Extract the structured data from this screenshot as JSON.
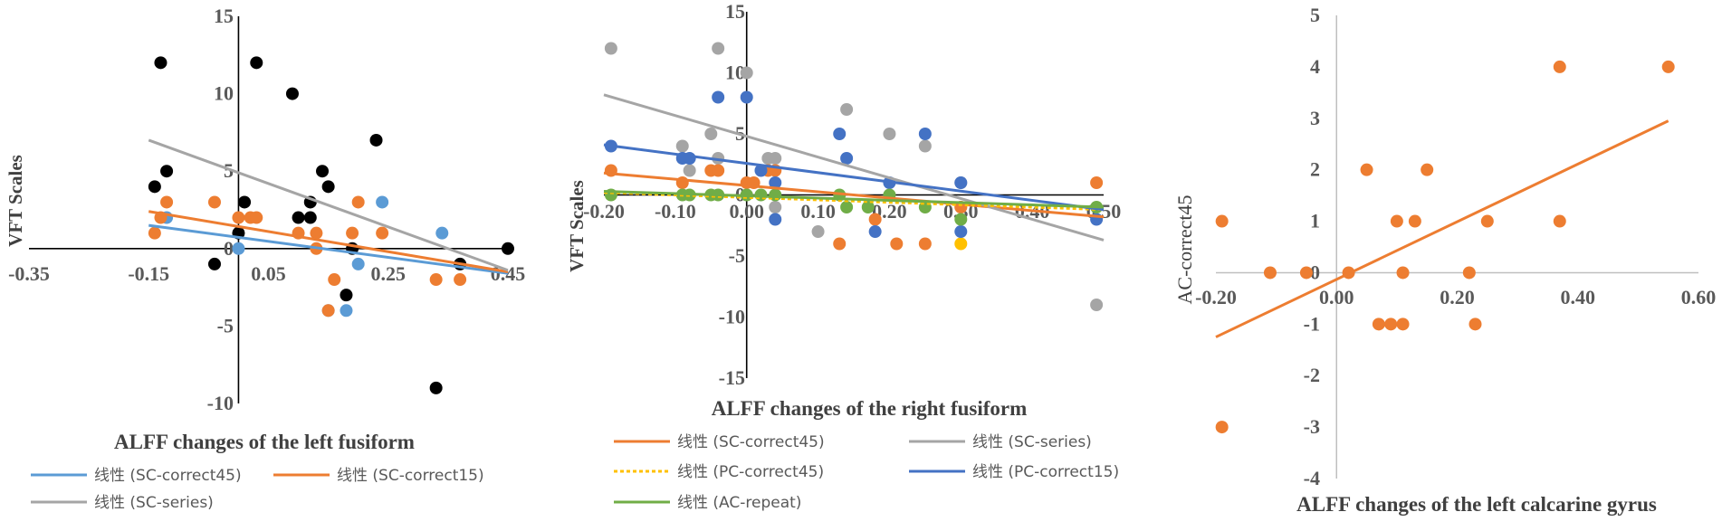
{
  "chart_data": [
    {
      "type": "scatter",
      "xlabel": "ALFF changes of the left fusiform",
      "ylabel": "VFT  Scales",
      "xlim": [
        -0.35,
        0.45
      ],
      "ylim": [
        -10,
        15
      ],
      "x_ticks": [
        "-0.35",
        "-0.15",
        "0.05",
        "0.25",
        "0.45"
      ],
      "y_ticks": [
        "15",
        "10",
        "5",
        "0",
        "-5",
        "-10"
      ],
      "series": [
        {
          "color": "#5B9BD5",
          "points": [
            [
              -0.12,
              2
            ],
            [
              0.0,
              0
            ],
            [
              0.15,
              -4
            ],
            [
              0.18,
              -4
            ],
            [
              0.2,
              -1
            ],
            [
              0.24,
              3
            ],
            [
              0.34,
              1
            ]
          ]
        },
        {
          "color": "#ED7D31",
          "points": [
            [
              -0.14,
              1
            ],
            [
              -0.13,
              2
            ],
            [
              -0.12,
              3
            ],
            [
              -0.04,
              3
            ],
            [
              0.0,
              2
            ],
            [
              0.02,
              2
            ],
            [
              0.03,
              2
            ],
            [
              0.1,
              1
            ],
            [
              0.13,
              1
            ],
            [
              0.13,
              0
            ],
            [
              0.15,
              -4
            ],
            [
              0.16,
              -2
            ],
            [
              0.19,
              1
            ],
            [
              0.2,
              3
            ],
            [
              0.24,
              1
            ],
            [
              0.33,
              -2
            ],
            [
              0.37,
              -2
            ]
          ]
        },
        {
          "color": "#000000",
          "points": [
            [
              -0.14,
              4
            ],
            [
              -0.13,
              12
            ],
            [
              -0.12,
              5
            ],
            [
              -0.04,
              -1
            ],
            [
              0.0,
              1
            ],
            [
              0.01,
              3
            ],
            [
              0.03,
              12
            ],
            [
              0.09,
              10
            ],
            [
              0.1,
              2
            ],
            [
              0.12,
              2
            ],
            [
              0.12,
              3
            ],
            [
              0.14,
              5
            ],
            [
              0.15,
              4
            ],
            [
              0.18,
              -3
            ],
            [
              0.19,
              0
            ],
            [
              0.23,
              7
            ],
            [
              0.33,
              -9
            ],
            [
              0.37,
              -1
            ],
            [
              0.45,
              0
            ]
          ]
        }
      ],
      "trendlines": [
        {
          "color": "#5B9BD5",
          "dash": false,
          "from": [
            -0.15,
            1.5
          ],
          "to": [
            0.45,
            -1.6
          ]
        },
        {
          "color": "#ED7D31",
          "dash": false,
          "from": [
            -0.15,
            2.4
          ],
          "to": [
            0.45,
            -1.5
          ]
        },
        {
          "color": "#A5A5A5",
          "dash": false,
          "from": [
            -0.15,
            7.0
          ],
          "to": [
            0.45,
            -1.4
          ]
        }
      ],
      "legend": [
        {
          "label": "线性 (SC-correct45)",
          "color": "#5B9BD5",
          "dash": false
        },
        {
          "label": "线性 (SC-correct15)",
          "color": "#ED7D31",
          "dash": false
        },
        {
          "label": "线性 (SC-series)",
          "color": "#A5A5A5",
          "dash": false
        }
      ]
    },
    {
      "type": "scatter",
      "xlabel": "ALFF changes of the right fusiform",
      "ylabel": "VFT Scales",
      "xlim": [
        -0.2,
        0.5
      ],
      "ylim": [
        -15,
        15
      ],
      "x_ticks": [
        "-0.20",
        "-0.10",
        "0.00",
        "0.10",
        "0.20",
        "0.30",
        "0.40",
        "0.50"
      ],
      "y_ticks": [
        "15",
        "10",
        "5",
        "0",
        "-5",
        "-10",
        "-15"
      ],
      "series": [
        {
          "color": "#A5A5A5",
          "points": [
            [
              -0.19,
              12
            ],
            [
              -0.09,
              4
            ],
            [
              -0.08,
              2
            ],
            [
              -0.05,
              5
            ],
            [
              -0.04,
              12
            ],
            [
              -0.04,
              3
            ],
            [
              0.0,
              10
            ],
            [
              0.03,
              3
            ],
            [
              0.04,
              3
            ],
            [
              0.04,
              -1
            ],
            [
              0.1,
              -3
            ],
            [
              0.14,
              7
            ],
            [
              0.2,
              5
            ],
            [
              0.25,
              4
            ],
            [
              0.3,
              1
            ],
            [
              0.3,
              -1
            ],
            [
              0.49,
              -9
            ]
          ]
        },
        {
          "color": "#ED7D31",
          "points": [
            [
              -0.19,
              2
            ],
            [
              -0.09,
              1
            ],
            [
              -0.05,
              2
            ],
            [
              -0.04,
              2
            ],
            [
              0.0,
              1
            ],
            [
              0.01,
              1
            ],
            [
              0.03,
              2
            ],
            [
              0.04,
              2
            ],
            [
              0.13,
              -4
            ],
            [
              0.18,
              -2
            ],
            [
              0.21,
              -4
            ],
            [
              0.25,
              -4
            ],
            [
              0.3,
              -1
            ],
            [
              0.49,
              1
            ]
          ]
        },
        {
          "color": "#FFC000",
          "points": [
            [
              0.3,
              -4
            ]
          ]
        },
        {
          "color": "#4472C4",
          "points": [
            [
              -0.19,
              4
            ],
            [
              -0.09,
              3
            ],
            [
              -0.08,
              3
            ],
            [
              -0.04,
              8
            ],
            [
              0.0,
              8
            ],
            [
              0.02,
              2
            ],
            [
              0.04,
              1
            ],
            [
              0.04,
              -2
            ],
            [
              0.13,
              5
            ],
            [
              0.14,
              3
            ],
            [
              0.18,
              -3
            ],
            [
              0.2,
              1
            ],
            [
              0.25,
              5
            ],
            [
              0.3,
              1
            ],
            [
              0.3,
              -3
            ],
            [
              0.49,
              -2
            ]
          ]
        },
        {
          "color": "#70AD47",
          "points": [
            [
              -0.19,
              0
            ],
            [
              -0.09,
              0
            ],
            [
              -0.08,
              0
            ],
            [
              -0.05,
              0
            ],
            [
              -0.04,
              0
            ],
            [
              0.0,
              0
            ],
            [
              0.02,
              0
            ],
            [
              0.04,
              0
            ],
            [
              0.13,
              0
            ],
            [
              0.14,
              -1
            ],
            [
              0.17,
              -1
            ],
            [
              0.2,
              0
            ],
            [
              0.25,
              -1
            ],
            [
              0.3,
              -2
            ],
            [
              0.49,
              -1
            ]
          ]
        }
      ],
      "trendlines": [
        {
          "color": "#ED7D31",
          "dash": false,
          "from": [
            -0.2,
            1.8
          ],
          "to": [
            0.5,
            -1.8
          ]
        },
        {
          "color": "#A5A5A5",
          "dash": false,
          "from": [
            -0.2,
            8.2
          ],
          "to": [
            0.5,
            -3.7
          ]
        },
        {
          "color": "#FFC000",
          "dash": true,
          "from": [
            -0.2,
            0.2
          ],
          "to": [
            0.5,
            -1.2
          ]
        },
        {
          "color": "#4472C4",
          "dash": false,
          "from": [
            -0.2,
            4.1
          ],
          "to": [
            0.5,
            -1.2
          ]
        },
        {
          "color": "#70AD47",
          "dash": false,
          "from": [
            -0.2,
            0.3
          ],
          "to": [
            0.5,
            -1.0
          ]
        }
      ],
      "legend": [
        {
          "label": "线性 (SC-correct45)",
          "color": "#ED7D31",
          "dash": false
        },
        {
          "label": "线性 (SC-series)",
          "color": "#A5A5A5",
          "dash": false
        },
        {
          "label": "线性 (PC-correct45)",
          "color": "#FFC000",
          "dash": true
        },
        {
          "label": "线性 (PC-correct15)",
          "color": "#4472C4",
          "dash": false
        },
        {
          "label": "线性 (AC-repeat)",
          "color": "#70AD47",
          "dash": false
        }
      ]
    },
    {
      "type": "scatter",
      "xlabel": "ALFF changes of the left calcarine gyrus",
      "ylabel": "AC-correct45",
      "xlim": [
        -0.2,
        0.6
      ],
      "ylim": [
        -4,
        5
      ],
      "x_ticks": [
        "-0.20",
        "0.00",
        "0.20",
        "0.40",
        "0.60"
      ],
      "y_ticks": [
        "5",
        "4",
        "3",
        "2",
        "1",
        "0",
        "-1",
        "-2",
        "-3",
        "-4"
      ],
      "series": [
        {
          "color": "#ED7D31",
          "points": [
            [
              -0.19,
              1
            ],
            [
              -0.19,
              -3
            ],
            [
              -0.11,
              0
            ],
            [
              -0.05,
              0
            ],
            [
              0.02,
              0
            ],
            [
              0.05,
              2
            ],
            [
              0.07,
              -1
            ],
            [
              0.09,
              -1
            ],
            [
              0.1,
              1
            ],
            [
              0.11,
              -1
            ],
            [
              0.11,
              0
            ],
            [
              0.13,
              1
            ],
            [
              0.15,
              2
            ],
            [
              0.22,
              0
            ],
            [
              0.23,
              -1
            ],
            [
              0.25,
              1
            ],
            [
              0.37,
              4
            ],
            [
              0.37,
              1
            ],
            [
              0.55,
              4
            ]
          ]
        }
      ],
      "trendlines": [
        {
          "color": "#ED7D31",
          "dash": false,
          "from": [
            -0.2,
            -1.25
          ],
          "to": [
            0.55,
            2.95
          ]
        }
      ],
      "legend": []
    }
  ]
}
